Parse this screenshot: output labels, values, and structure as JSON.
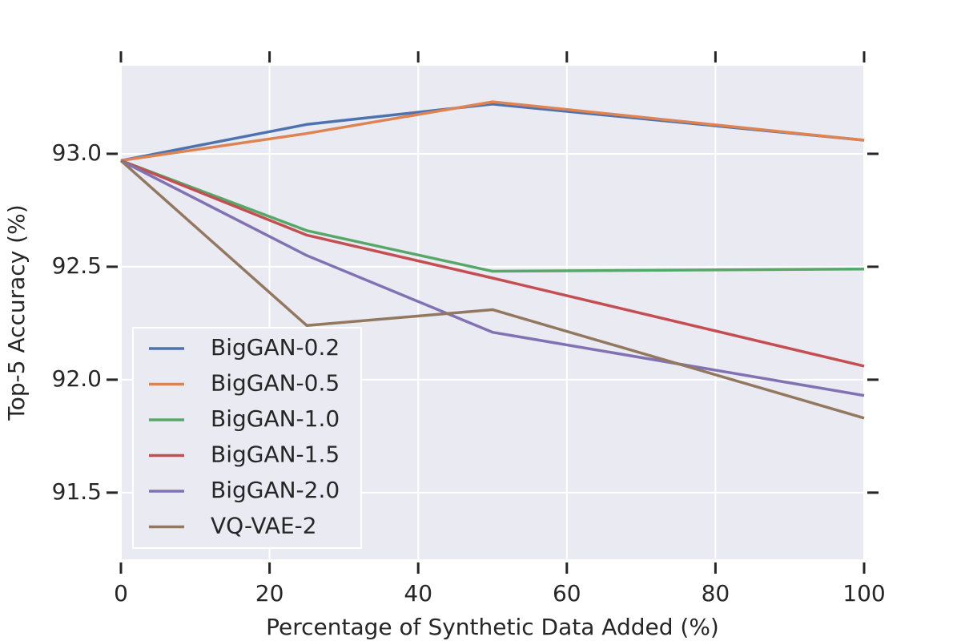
{
  "chart_data": {
    "type": "line",
    "xlabel": "Percentage of Synthetic Data Added (%)",
    "ylabel": "Top-5 Accuracy (%)",
    "x": [
      0,
      25,
      50,
      100
    ],
    "series": [
      {
        "name": "BigGAN-0.2",
        "color": "#4c72b0",
        "values": [
          92.97,
          93.13,
          93.22,
          93.06
        ]
      },
      {
        "name": "BigGAN-0.5",
        "color": "#dd8452",
        "values": [
          92.97,
          93.09,
          93.23,
          93.06
        ]
      },
      {
        "name": "BigGAN-1.0",
        "color": "#55a868",
        "values": [
          92.97,
          92.66,
          92.48,
          92.49
        ]
      },
      {
        "name": "BigGAN-1.5",
        "color": "#c44e52",
        "values": [
          92.97,
          92.64,
          92.45,
          92.06
        ]
      },
      {
        "name": "BigGAN-2.0",
        "color": "#8172b3",
        "values": [
          92.97,
          92.55,
          92.21,
          91.93
        ]
      },
      {
        "name": "VQ-VAE-2",
        "color": "#937860",
        "values": [
          92.97,
          92.24,
          92.31,
          91.83
        ]
      }
    ],
    "xlim": [
      0,
      100
    ],
    "xticks": [
      0,
      20,
      40,
      60,
      80,
      100
    ],
    "ylim": [
      91.205,
      93.39
    ],
    "yticks": [
      {
        "value": 91.5,
        "label": "91.5"
      },
      {
        "value": 92.0,
        "label": "92.0"
      },
      {
        "value": 92.5,
        "label": "92.5"
      },
      {
        "value": 93.0,
        "label": "93.0"
      }
    ],
    "grid": true,
    "legend": "lower left"
  }
}
